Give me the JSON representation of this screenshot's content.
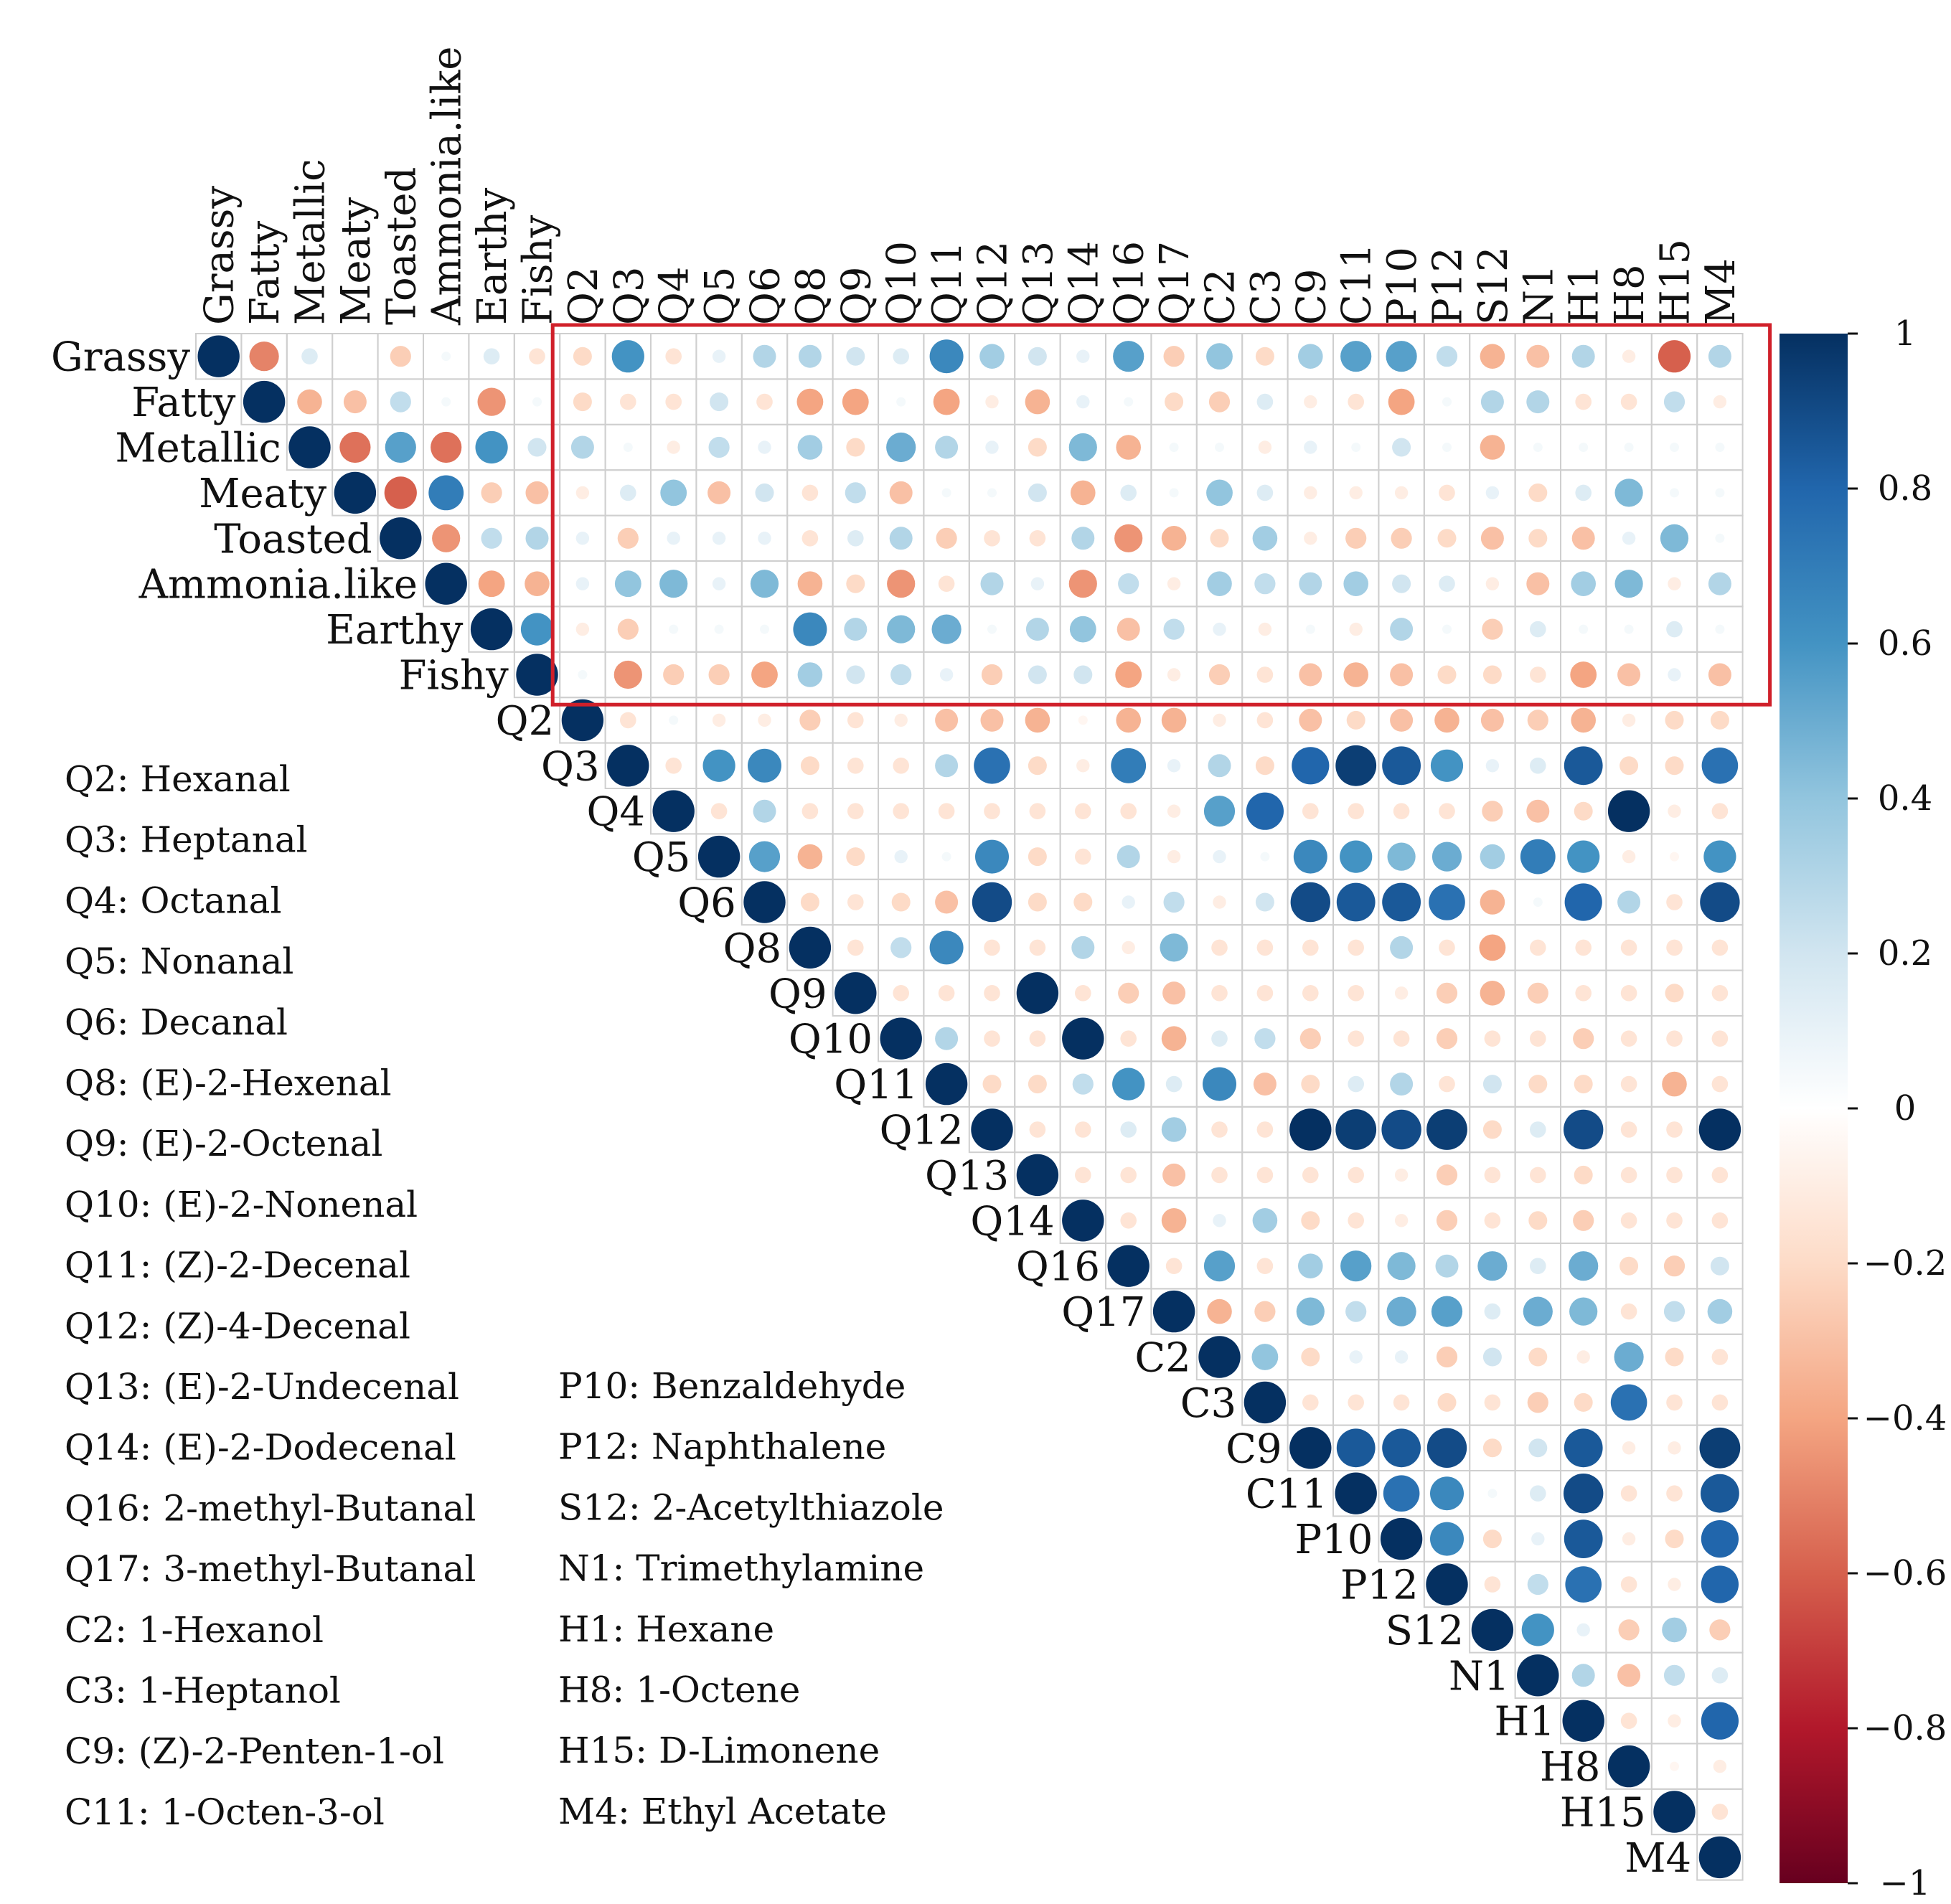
{
  "chart_data": {
    "type": "heatmap",
    "style": "correlation-circles-upper-triangle",
    "variables": [
      "Grassy",
      "Fatty",
      "Metallic",
      "Meaty",
      "Toasted",
      "Ammonia.like",
      "Earthy",
      "Fishy",
      "Q2",
      "Q3",
      "Q4",
      "Q5",
      "Q6",
      "Q8",
      "Q9",
      "Q10",
      "Q11",
      "Q12",
      "Q13",
      "Q14",
      "Q16",
      "Q17",
      "C2",
      "C3",
      "C9",
      "C11",
      "P10",
      "P12",
      "S12",
      "N1",
      "H1",
      "H8",
      "H15",
      "M4"
    ],
    "correlation_rows": [
      [
        1,
        -0.5,
        0.15,
        0,
        -0.25,
        0.05,
        0.15,
        -0.15,
        -0.2,
        0.6,
        -0.15,
        0.1,
        0.3,
        0.3,
        0.2,
        0.15,
        0.65,
        0.35,
        0.2,
        0.1,
        0.55,
        -0.25,
        0.4,
        -0.2,
        0.35,
        0.55,
        0.55,
        0.25,
        -0.35,
        -0.3,
        0.3,
        -0.1,
        -0.6,
        0.3
      ],
      [
        1,
        -0.35,
        -0.3,
        0.25,
        0.05,
        -0.45,
        0.05,
        -0.2,
        -0.15,
        -0.15,
        0.2,
        -0.15,
        -0.4,
        -0.4,
        0.05,
        -0.4,
        -0.1,
        -0.35,
        0.1,
        0.05,
        -0.2,
        -0.25,
        0.15,
        -0.1,
        -0.15,
        -0.4,
        0.05,
        0.3,
        0.3,
        -0.15,
        -0.15,
        0.25,
        -0.1
      ],
      [
        1,
        -0.55,
        0.55,
        -0.55,
        0.6,
        0.2,
        0.3,
        0.05,
        -0.1,
        0.25,
        0.1,
        0.35,
        -0.2,
        0.5,
        0.3,
        0.1,
        -0.2,
        0.45,
        -0.35,
        0.05,
        0.05,
        -0.1,
        0.1,
        0.05,
        0.2,
        0.05,
        -0.35,
        0.05,
        0.05,
        0.05,
        0.05,
        0.05
      ],
      [
        1,
        -0.6,
        0.7,
        -0.25,
        -0.3,
        -0.1,
        0.15,
        0.4,
        -0.3,
        0.2,
        -0.15,
        0.25,
        -0.3,
        0.05,
        0.05,
        0.2,
        -0.35,
        0.15,
        0.05,
        0.4,
        0.15,
        -0.1,
        -0.1,
        -0.1,
        -0.15,
        0.1,
        -0.2,
        0.15,
        0.45,
        0.05,
        0.05
      ],
      [
        1,
        -0.45,
        0.25,
        0.3,
        0.1,
        -0.25,
        0.1,
        0.1,
        0.1,
        -0.15,
        0.15,
        0.3,
        -0.25,
        -0.15,
        -0.15,
        0.3,
        -0.45,
        -0.35,
        -0.2,
        0.35,
        -0.1,
        -0.25,
        -0.25,
        -0.2,
        -0.3,
        -0.2,
        -0.3,
        0.1,
        0.45,
        0.05
      ],
      [
        1,
        -0.4,
        -0.35,
        0.1,
        0.4,
        0.45,
        0.1,
        0.45,
        -0.35,
        -0.2,
        -0.45,
        -0.15,
        0.3,
        0.1,
        -0.45,
        0.25,
        -0.1,
        0.35,
        0.25,
        0.3,
        0.35,
        0.2,
        0.15,
        -0.1,
        -0.3,
        0.35,
        0.45,
        -0.1,
        0.3
      ],
      [
        1,
        0.6,
        -0.1,
        -0.25,
        0.05,
        0.05,
        0.05,
        0.65,
        0.3,
        0.45,
        0.5,
        0.05,
        0.3,
        0.4,
        -0.3,
        0.25,
        0.1,
        -0.1,
        0.05,
        -0.1,
        0.3,
        0.05,
        -0.25,
        0.15,
        0.05,
        0.05,
        0.15,
        0.05
      ],
      [
        1,
        0.05,
        -0.45,
        -0.25,
        -0.25,
        -0.4,
        0.35,
        0.2,
        0.25,
        0.1,
        -0.25,
        0.2,
        0.2,
        -0.4,
        -0.1,
        -0.25,
        -0.15,
        -0.3,
        -0.35,
        -0.3,
        -0.2,
        -0.2,
        -0.15,
        -0.4,
        -0.3,
        0.1,
        -0.3
      ],
      [
        1,
        -0.15,
        0.05,
        -0.1,
        -0.1,
        -0.25,
        -0.15,
        -0.1,
        -0.3,
        -0.3,
        -0.35,
        -0.05,
        -0.35,
        -0.35,
        -0.1,
        -0.15,
        -0.3,
        -0.2,
        -0.3,
        -0.35,
        -0.3,
        -0.25,
        -0.35,
        -0.1,
        -0.2,
        -0.2
      ],
      [
        1,
        -0.15,
        0.6,
        0.65,
        -0.2,
        -0.15,
        -0.15,
        0.3,
        0.75,
        -0.2,
        -0.1,
        0.7,
        0.1,
        0.3,
        -0.2,
        0.8,
        0.95,
        0.85,
        0.6,
        0.1,
        0.15,
        0.85,
        -0.2,
        -0.2,
        0.75
      ],
      [
        1,
        -0.15,
        0.3,
        -0.15,
        -0.15,
        -0.15,
        -0.15,
        -0.15,
        -0.15,
        -0.15,
        -0.15,
        -0.1,
        0.55,
        0.8,
        -0.15,
        -0.15,
        -0.15,
        -0.15,
        -0.25,
        -0.3,
        -0.2,
        1,
        -0.1,
        -0.15
      ],
      [
        1,
        0.55,
        -0.35,
        -0.2,
        0.1,
        0.05,
        0.65,
        -0.2,
        -0.15,
        0.3,
        -0.1,
        0.1,
        0.05,
        0.65,
        0.6,
        0.45,
        0.5,
        0.35,
        0.7,
        0.6,
        -0.1,
        -0.05,
        0.6
      ],
      [
        1,
        -0.2,
        -0.15,
        -0.2,
        -0.3,
        0.9,
        -0.2,
        -0.2,
        0.1,
        0.25,
        -0.1,
        0.2,
        0.9,
        0.85,
        0.85,
        0.75,
        -0.35,
        0.05,
        0.8,
        0.3,
        -0.15,
        0.9
      ],
      [
        1,
        -0.15,
        0.25,
        0.65,
        -0.15,
        -0.15,
        0.3,
        -0.1,
        0.45,
        -0.15,
        -0.15,
        -0.15,
        -0.15,
        0.3,
        -0.15,
        -0.4,
        -0.15,
        -0.15,
        -0.15,
        -0.15,
        -0.15
      ],
      [
        1,
        -0.15,
        -0.15,
        -0.15,
        1,
        -0.15,
        -0.25,
        -0.3,
        -0.15,
        -0.15,
        -0.15,
        -0.15,
        -0.1,
        -0.25,
        -0.35,
        -0.25,
        -0.15,
        -0.15,
        -0.2,
        -0.15
      ],
      [
        1,
        0.3,
        -0.15,
        -0.15,
        1,
        -0.15,
        -0.35,
        0.15,
        0.25,
        -0.25,
        -0.15,
        -0.15,
        -0.25,
        -0.15,
        -0.15,
        -0.25,
        -0.15,
        -0.15,
        -0.15
      ],
      [
        1,
        -0.2,
        -0.2,
        0.25,
        0.6,
        0.15,
        0.65,
        -0.3,
        -0.2,
        0.15,
        0.3,
        -0.15,
        0.2,
        -0.2,
        -0.2,
        -0.15,
        -0.35,
        -0.15
      ],
      [
        1,
        -0.15,
        -0.15,
        0.15,
        0.35,
        -0.15,
        -0.15,
        1,
        0.95,
        0.9,
        0.95,
        -0.2,
        0.15,
        0.9,
        -0.15,
        -0.15,
        1
      ],
      [
        1,
        -0.15,
        -0.15,
        -0.3,
        -0.15,
        -0.15,
        -0.15,
        -0.15,
        -0.1,
        -0.25,
        -0.15,
        -0.15,
        -0.2,
        -0.15,
        -0.15,
        -0.15
      ],
      [
        1,
        -0.15,
        -0.35,
        0.1,
        0.35,
        -0.2,
        -0.15,
        -0.1,
        -0.25,
        -0.15,
        -0.2,
        -0.25,
        -0.15,
        -0.15,
        -0.15
      ],
      [
        1,
        -0.15,
        0.55,
        -0.15,
        0.35,
        0.55,
        0.45,
        0.3,
        0.5,
        0.15,
        0.5,
        -0.2,
        -0.25,
        0.2
      ],
      [
        1,
        -0.35,
        -0.25,
        0.45,
        0.25,
        0.5,
        0.55,
        0.15,
        0.5,
        0.45,
        -0.15,
        0.25,
        0.35
      ],
      [
        1,
        0.4,
        -0.2,
        0.1,
        0.1,
        -0.25,
        0.2,
        -0.2,
        -0.1,
        0.5,
        -0.2,
        -0.15
      ],
      [
        1,
        -0.15,
        -0.15,
        -0.15,
        -0.2,
        -0.15,
        -0.25,
        -0.2,
        0.75,
        -0.15,
        -0.15
      ],
      [
        1,
        0.85,
        0.85,
        0.9,
        -0.2,
        0.2,
        0.85,
        -0.1,
        -0.1,
        0.95
      ],
      [
        1,
        0.75,
        0.65,
        0.05,
        0.15,
        0.9,
        -0.15,
        -0.15,
        0.85
      ],
      [
        1,
        0.65,
        -0.2,
        0.1,
        0.85,
        -0.1,
        -0.2,
        0.8
      ],
      [
        1,
        -0.15,
        0.25,
        0.75,
        -0.15,
        -0.1,
        0.8
      ],
      [
        1,
        0.6,
        0.1,
        -0.25,
        0.35,
        -0.25
      ],
      [
        1,
        0.3,
        -0.3,
        0.25,
        0.15
      ],
      [
        1,
        -0.15,
        -0.1,
        0.8
      ],
      [
        1,
        -0.05,
        -0.1
      ],
      [
        1,
        -0.15
      ],
      [
        1
      ]
    ],
    "colorbar": {
      "range": [
        -1,
        1
      ],
      "ticks": [
        "1",
        "0.8",
        "0.6",
        "0.4",
        "0.2",
        "0",
        "−0.2",
        "−0.4",
        "−0.6",
        "−0.8",
        "−1"
      ],
      "colors": {
        "positive": "#053061",
        "mid": "#ffffff",
        "negative": "#67001f"
      }
    },
    "highlight": {
      "rows": [
        "Grassy",
        "Fishy"
      ],
      "cols": [
        "Q2",
        "M4"
      ],
      "color": "#d0202a"
    },
    "legend_left": [
      "Q2: Hexanal",
      "Q3: Heptanal",
      "Q4: Octanal",
      "Q5: Nonanal",
      "Q6: Decanal",
      "Q8: (E)-2-Hexenal",
      "Q9: (E)-2-Octenal",
      "Q10: (E)-2-Nonenal",
      "Q11: (Z)-2-Decenal",
      "Q12: (Z)-4-Decenal",
      "Q13: (E)-2-Undecenal",
      "Q14: (E)-2-Dodecenal",
      "Q16: 2-methyl-Butanal",
      "Q17: 3-methyl-Butanal",
      "C2: 1-Hexanol",
      "C3: 1-Heptanol",
      "C9: (Z)-2-Penten-1-ol",
      "C11: 1-Octen-3-ol"
    ],
    "legend_right": [
      "P10: Benzaldehyde",
      "P12: Naphthalene",
      "S12: 2-Acetylthiazole",
      "N1: Trimethylamine",
      "H1: Hexane",
      "H8: 1-Octene",
      "H15: D-Limonene",
      "M4: Ethyl Acetate"
    ]
  }
}
